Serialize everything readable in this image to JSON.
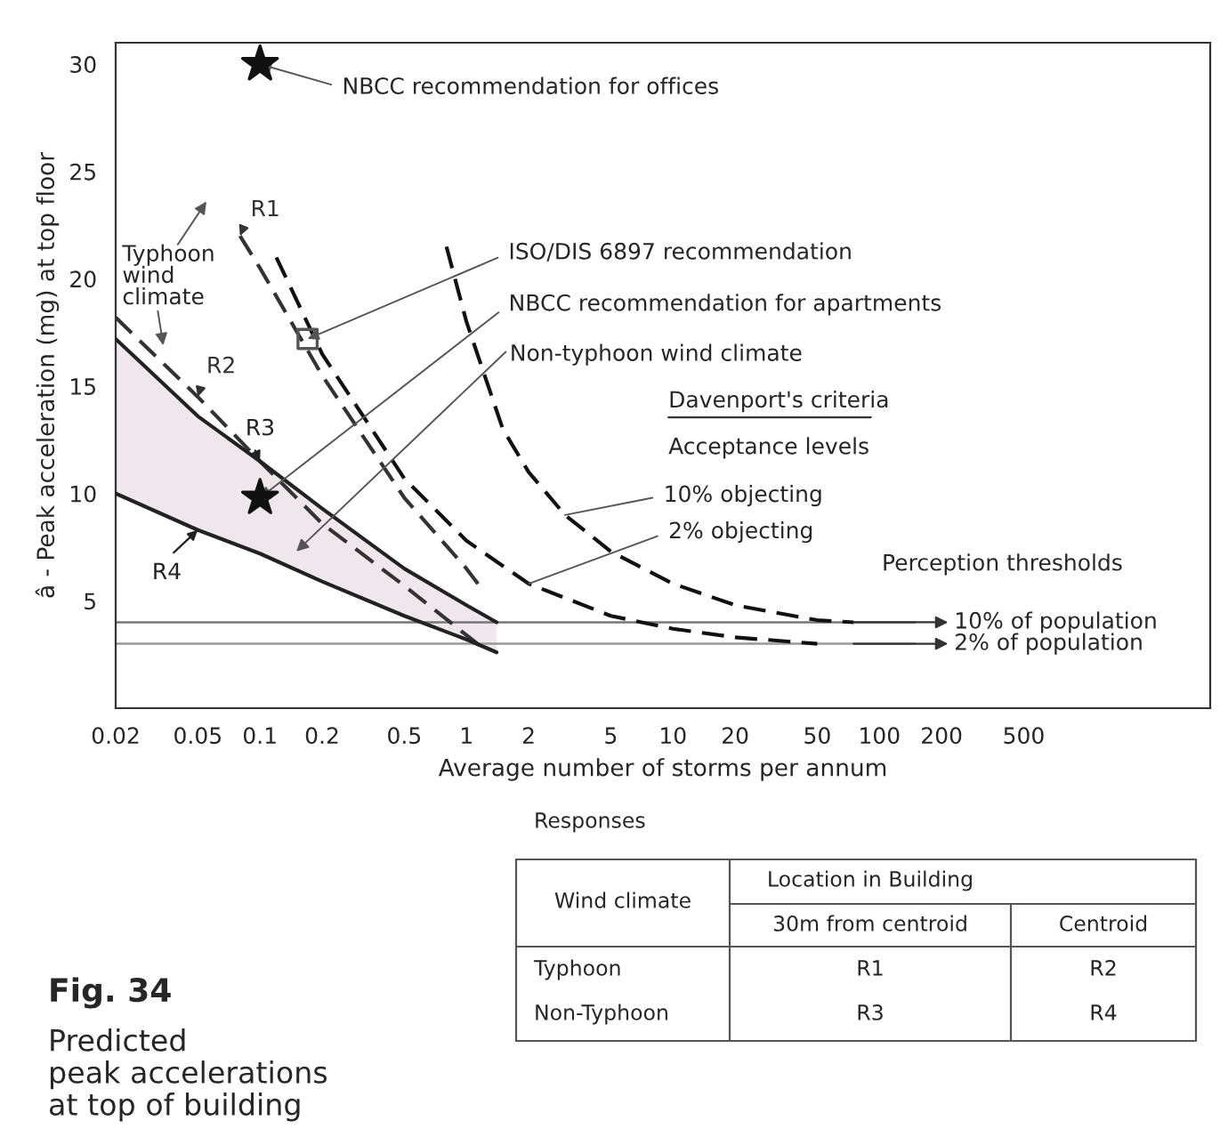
{
  "chart_data": {
    "type": "line",
    "title": "Fig. 34",
    "subtitle": "Predicted\npeak accelerations\nat top of building",
    "xlabel": "Average number of storms per annum",
    "ylabel": "â - Peak acceleration (mg) at top floor",
    "log": "x",
    "xlim": [
      0.02,
      4000
    ],
    "ylim": [
      0,
      31
    ],
    "xticks": [
      0.02,
      0.05,
      0.1,
      0.2,
      0.5,
      1,
      2,
      5,
      10,
      20,
      50,
      100,
      200,
      500
    ],
    "yticks": [
      5,
      10,
      15,
      20,
      25,
      30
    ],
    "grid": false,
    "legend": false,
    "series": [
      {
        "name": "R1",
        "color": "#333333",
        "line_style": "dashed",
        "x": [
          0.08,
          0.1,
          0.2,
          0.5,
          1,
          1.2
        ],
        "values": [
          22,
          20.5,
          15.5,
          9.8,
          6.5,
          5.5
        ]
      },
      {
        "name": "R2",
        "color": "#333333",
        "line_style": "dashed",
        "x": [
          0.02,
          0.05,
          0.1,
          0.2,
          0.5,
          1,
          1.2
        ],
        "values": [
          18.2,
          14.5,
          11.5,
          8.6,
          5.7,
          3.4,
          2.8
        ]
      },
      {
        "name": "R3",
        "color": "#222222",
        "line_style": "solid",
        "x": [
          0.02,
          0.05,
          0.1,
          0.2,
          0.5,
          1,
          1.4
        ],
        "values": [
          17.2,
          13.6,
          11.5,
          9.3,
          6.5,
          4.8,
          4.0
        ]
      },
      {
        "name": "R4",
        "color": "#222222",
        "line_style": "solid",
        "x": [
          0.02,
          0.05,
          0.1,
          0.2,
          0.5,
          1,
          1.4
        ],
        "values": [
          10,
          8.3,
          7.2,
          5.9,
          4.3,
          3.2,
          2.6
        ],
        "lower": [
          10,
          8.3,
          7.2,
          5.9,
          4.3,
          3.2,
          2.6
        ],
        "upper": [
          17.2,
          13.6,
          11.5,
          9.3,
          6.5,
          4.8,
          4.0
        ]
      },
      {
        "color": "#111111",
        "line_style": "dashed",
        "x": [
          0.8,
          1,
          1.5,
          2,
          3,
          5,
          10,
          20,
          50,
          75
        ],
        "values": [
          21.5,
          18,
          13,
          11,
          9,
          7.3,
          5.8,
          4.8,
          4.1,
          4.0
        ]
      },
      {
        "color": "#111111",
        "line_style": "dashed",
        "x": [
          0.12,
          0.2,
          0.5,
          1,
          2,
          5,
          10,
          20,
          50
        ],
        "values": [
          21,
          16.5,
          10.7,
          7.8,
          5.8,
          4.3,
          3.7,
          3.3,
          3.0
        ]
      },
      {
        "type": "scatter",
        "marker": "star",
        "color": "#111111",
        "x": [
          0.1,
          0.1
        ],
        "values": [
          30,
          9.8
        ]
      },
      {
        "type": "scatter",
        "marker": "square",
        "color": "#555555",
        "x": [
          0.17
        ],
        "values": [
          17.2
        ]
      }
    ],
    "ref_lines": [
      {
        "axis": "y",
        "value": 4,
        "label": "10% of population",
        "color": "#777777"
      },
      {
        "axis": "y",
        "value": 3,
        "label": "2% of population",
        "color": "#999999"
      }
    ],
    "annotations": [
      {
        "text": "NBCC recommendation for offices",
        "x": 0.1,
        "y": 30
      },
      {
        "text": "ISO/DIS 6897 recommendation",
        "x": 0.17,
        "y": 17.2
      },
      {
        "text": "NBCC recommendation for apartments",
        "x": 0.1,
        "y": 9.8
      },
      {
        "text": "10% objecting",
        "x": 3,
        "y": 9
      },
      {
        "text": "2% objecting",
        "x": 2,
        "y": 5.8
      },
      "Non-typhoon wind climate",
      "Typhoon\nwind\nclimate",
      "Davenport's criteria",
      "Acceptance levels",
      "Perception thresholds",
      "Responses",
      "Wind climate",
      "Location in Building",
      "30m from centroid",
      "Centroid",
      "Typhoon",
      "R1",
      "R2",
      "Non-Typhoon",
      "R3",
      "R4"
    ]
  }
}
